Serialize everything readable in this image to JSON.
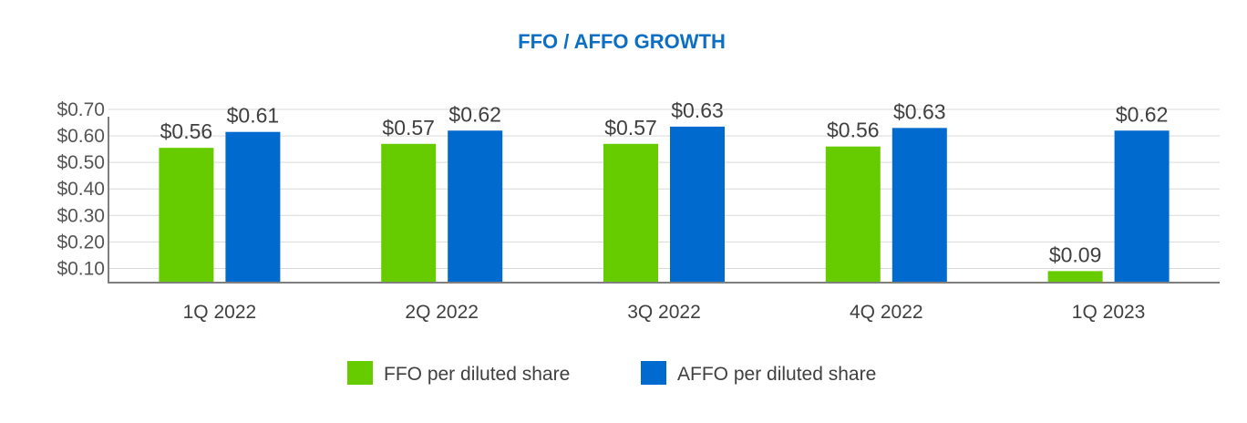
{
  "chart_data": {
    "type": "bar",
    "title": "FFO / AFFO GROWTH",
    "title_color": "#0B6FC6",
    "categories": [
      "1Q 2022",
      "2Q 2022",
      "3Q 2022",
      "4Q 2022",
      "1Q 2023"
    ],
    "series": [
      {
        "name": "FFO per diluted share",
        "color": "#66CC00",
        "values": [
          0.555,
          0.57,
          0.57,
          0.56,
          0.09
        ],
        "labels": [
          "$0.56",
          "$0.57",
          "$0.57",
          "$0.56",
          "$0.09"
        ]
      },
      {
        "name": "AFFO per diluted share",
        "color": "#006ACE",
        "values": [
          0.615,
          0.62,
          0.635,
          0.63,
          0.62
        ],
        "labels": [
          "$0.61",
          "$0.62",
          "$0.63",
          "$0.63",
          "$0.62"
        ]
      }
    ],
    "yticks": [
      0.1,
      0.2,
      0.3,
      0.4,
      0.5,
      0.6,
      0.7
    ],
    "ytick_labels": [
      "$0.10",
      "$0.20",
      "$0.30",
      "$0.40",
      "$0.50",
      "$0.60",
      "$0.70"
    ],
    "ylim": [
      0.05,
      0.7
    ],
    "xlabel": "",
    "ylabel": "",
    "grid": true,
    "legend": "bottom"
  }
}
